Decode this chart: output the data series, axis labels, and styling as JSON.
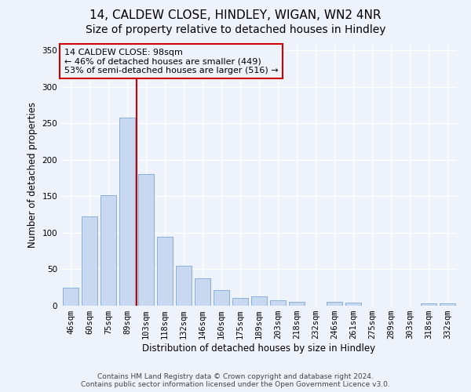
{
  "title1": "14, CALDEW CLOSE, HINDLEY, WIGAN, WN2 4NR",
  "title2": "Size of property relative to detached houses in Hindley",
  "xlabel": "Distribution of detached houses by size in Hindley",
  "ylabel": "Number of detached properties",
  "bar_labels": [
    "46sqm",
    "60sqm",
    "75sqm",
    "89sqm",
    "103sqm",
    "118sqm",
    "132sqm",
    "146sqm",
    "160sqm",
    "175sqm",
    "189sqm",
    "203sqm",
    "218sqm",
    "232sqm",
    "246sqm",
    "261sqm",
    "275sqm",
    "289sqm",
    "303sqm",
    "318sqm",
    "332sqm"
  ],
  "bar_values": [
    25,
    123,
    152,
    258,
    181,
    95,
    55,
    38,
    22,
    11,
    13,
    7,
    5,
    0,
    5,
    4,
    0,
    0,
    0,
    3,
    3
  ],
  "bar_color": "#c8d8f0",
  "bar_edge_color": "#7aa8d8",
  "vline_color": "#cc0000",
  "annotation_box_text": "14 CALDEW CLOSE: 98sqm\n← 46% of detached houses are smaller (449)\n53% of semi-detached houses are larger (516) →",
  "annotation_box_color": "#cc0000",
  "footer1": "Contains HM Land Registry data © Crown copyright and database right 2024.",
  "footer2": "Contains public sector information licensed under the Open Government Licence v3.0.",
  "ylim": [
    0,
    360
  ],
  "background_color": "#eef2fb",
  "grid_color": "#ffffff",
  "title_fontsize": 11,
  "subtitle_fontsize": 10,
  "axis_fontsize": 8.5,
  "tick_fontsize": 7.5,
  "footer_fontsize": 6.5
}
